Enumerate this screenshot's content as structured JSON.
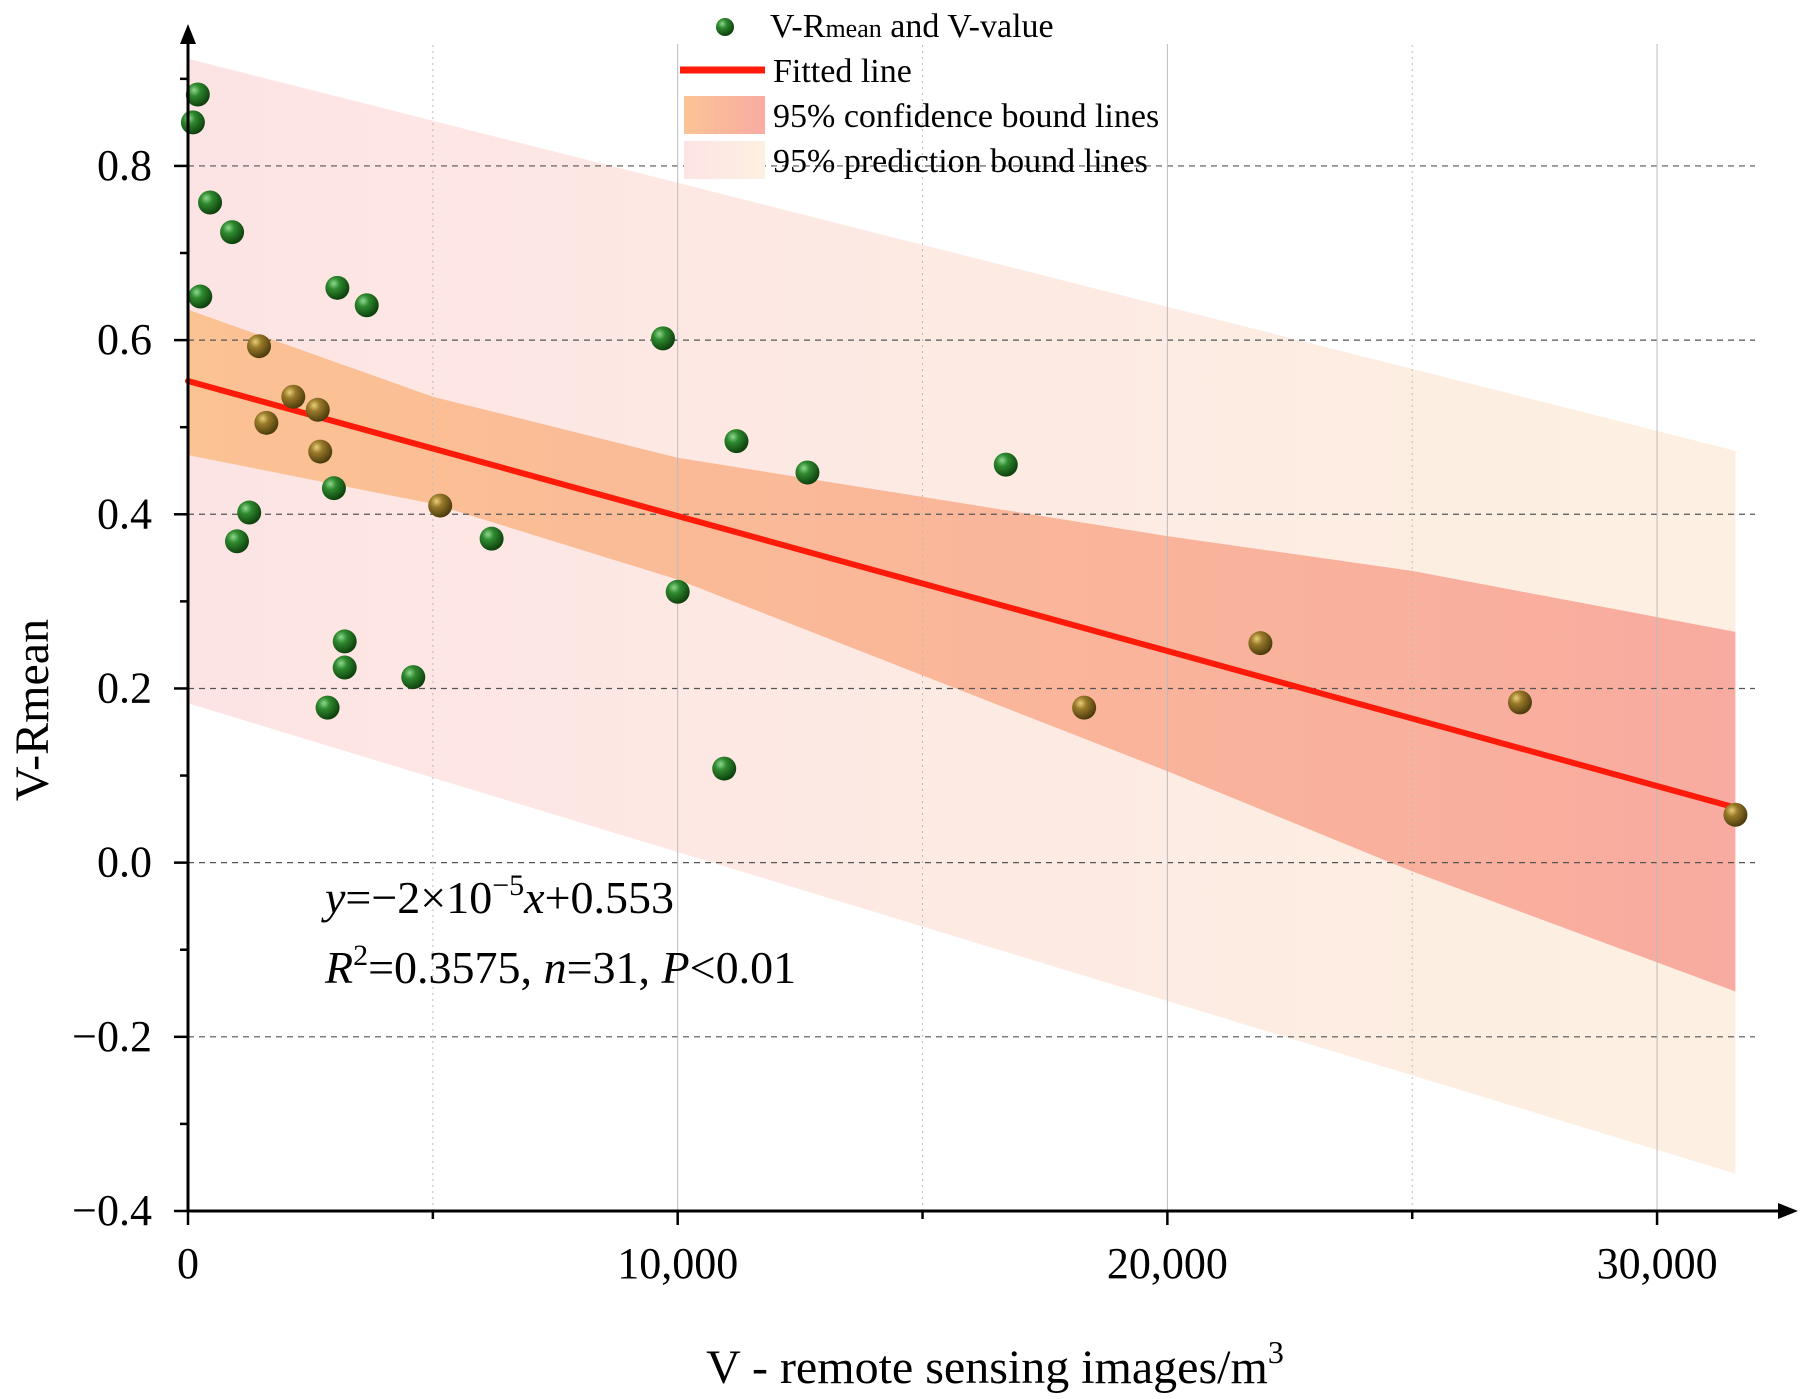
{
  "chart_data": {
    "type": "scatter",
    "title": "",
    "xlabel": "V - remote sensing images/m",
    "xlabel_superscript": "3",
    "ylabel": "V-Rmean",
    "xlim": [
      0,
      32000
    ],
    "ylim": [
      -0.4,
      0.94
    ],
    "x_ticks": [
      0,
      10000,
      20000,
      30000
    ],
    "x_tick_labels": [
      "0",
      "10,000",
      "20,000",
      "30,000"
    ],
    "y_ticks": [
      -0.4,
      -0.2,
      0.0,
      0.2,
      0.4,
      0.6,
      0.8
    ],
    "y_tick_labels": [
      "−0.4",
      "−0.2",
      "0.0",
      "0.2",
      "0.4",
      "0.6",
      "0.8"
    ],
    "grid": true,
    "legend": {
      "position": "top-center",
      "points_label_prefix": "V-R",
      "points_label_sub": "mean",
      "points_label_suffix": " and V-value",
      "fit_label": "Fitted line",
      "confidence_label": "95% confidence bound lines",
      "prediction_label": "95% prediction bound lines"
    },
    "fit": {
      "slope": -1.55e-05,
      "intercept": 0.553,
      "equation_parts": [
        "y",
        "=−2×10",
        "−5",
        "x",
        "+0.553"
      ],
      "stats_parts": [
        "R",
        "2",
        "=0.3575, ",
        "n",
        "=31, ",
        "P",
        "<0.01"
      ]
    },
    "confidence_band": {
      "x": [
        0,
        5000,
        10000,
        15000,
        20000,
        25000,
        31600
      ],
      "upper": [
        0.635,
        0.535,
        0.465,
        0.42,
        0.375,
        0.335,
        0.265
      ],
      "lower": [
        0.468,
        0.412,
        0.325,
        0.215,
        0.105,
        -0.01,
        -0.148
      ]
    },
    "prediction_band": {
      "x": [
        0,
        31600
      ],
      "upper": [
        0.923,
        0.473
      ],
      "lower": [
        0.183,
        -0.357
      ]
    },
    "series": [
      {
        "name": "V-Rmean and V-value",
        "points": [
          [
            100,
            0.85
          ],
          [
            200,
            0.882
          ],
          [
            450,
            0.758
          ],
          [
            900,
            0.724
          ],
          [
            250,
            0.65
          ],
          [
            1450,
            0.593
          ],
          [
            2150,
            0.535
          ],
          [
            1600,
            0.505
          ],
          [
            2650,
            0.52
          ],
          [
            2700,
            0.472
          ],
          [
            3050,
            0.66
          ],
          [
            3650,
            0.64
          ],
          [
            2980,
            0.43
          ],
          [
            1250,
            0.402
          ],
          [
            1000,
            0.369
          ],
          [
            5150,
            0.41
          ],
          [
            6200,
            0.372
          ],
          [
            3200,
            0.254
          ],
          [
            3200,
            0.224
          ],
          [
            2850,
            0.178
          ],
          [
            4600,
            0.213
          ],
          [
            9700,
            0.602
          ],
          [
            10000,
            0.311
          ],
          [
            11200,
            0.484
          ],
          [
            12650,
            0.448
          ],
          [
            10950,
            0.108
          ],
          [
            16700,
            0.457
          ],
          [
            18300,
            0.178
          ],
          [
            21900,
            0.252
          ],
          [
            27200,
            0.184
          ],
          [
            31600,
            0.055
          ]
        ]
      }
    ],
    "colors": {
      "point_green": "#1f6e1f",
      "point_brown": "#8a6a1e",
      "fit_line": "#ff1a0a",
      "confidence_left": "#fbbf8c",
      "confidence_right": "#f8a59a",
      "prediction_left": "#fde4e4",
      "prediction_right": "#fdf0e2"
    }
  }
}
